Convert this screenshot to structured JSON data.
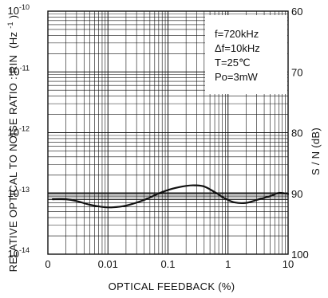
{
  "chart_data": {
    "type": "line",
    "x_axis": {
      "scale": "log",
      "range": [
        0.001,
        10
      ],
      "ticks": [
        {
          "value": 0.001,
          "label": "0"
        },
        {
          "value": 0.01,
          "label": "0.01"
        },
        {
          "value": 0.1,
          "label": "0.1"
        },
        {
          "value": 1,
          "label": "1"
        },
        {
          "value": 10,
          "label": "10"
        }
      ],
      "label": "OPTICAL FEEDBACK (%)"
    },
    "y_axis_left": {
      "scale": "log",
      "range": [
        1e-14,
        1e-10
      ],
      "ticks": [
        {
          "value": 1e-10,
          "base": "10",
          "exp": "-10"
        },
        {
          "value": 1e-11,
          "base": "10",
          "exp": "-11"
        },
        {
          "value": 1e-12,
          "base": "10",
          "exp": "-12"
        },
        {
          "value": 1e-13,
          "base": "10",
          "exp": "-13"
        },
        {
          "value": 1e-14,
          "base": "10",
          "exp": "-14"
        }
      ],
      "label": "RELATIVE OPTICAL TO NOISE RATIO : RIN",
      "unit_base": "(Hz",
      "unit_exp": "-1",
      "unit_close": ")"
    },
    "y_axis_right": {
      "scale": "linear",
      "range": [
        60,
        100
      ],
      "inverted": true,
      "ticks": [
        {
          "value": 60,
          "label": "60"
        },
        {
          "value": 70,
          "label": "70"
        },
        {
          "value": 80,
          "label": "80"
        },
        {
          "value": 90,
          "label": "90"
        },
        {
          "value": 100,
          "label": "100"
        }
      ],
      "label": "S / N (dB)"
    },
    "annotations": [
      "f=720kHz",
      "Δf=10kHz",
      "T=25℃",
      "Po=3mW"
    ],
    "grid": true,
    "extra_horizontal_lines": [
      7.9e-14,
      8.5e-14,
      9.1e-14,
      9.7e-14,
      1.03e-13
    ],
    "series": [
      {
        "points": [
          [
            0.0012,
            8e-14
          ],
          [
            0.002,
            8e-14
          ],
          [
            0.003,
            7.5e-14
          ],
          [
            0.005,
            6.5e-14
          ],
          [
            0.008,
            6e-14
          ],
          [
            0.012,
            5.9e-14
          ],
          [
            0.02,
            6.3e-14
          ],
          [
            0.04,
            7.8e-14
          ],
          [
            0.07,
            1e-13
          ],
          [
            0.12,
            1.2e-13
          ],
          [
            0.2,
            1.33e-13
          ],
          [
            0.28,
            1.36e-13
          ],
          [
            0.4,
            1.3e-13
          ],
          [
            0.6,
            1.05e-13
          ],
          [
            0.9,
            8.2e-14
          ],
          [
            1.3,
            7.1e-14
          ],
          [
            2.0,
            7e-14
          ],
          [
            3.0,
            7.8e-14
          ],
          [
            5.0,
            9e-14
          ],
          [
            7.0,
            1.02e-13
          ],
          [
            10.0,
            9.8e-14
          ]
        ]
      }
    ]
  }
}
